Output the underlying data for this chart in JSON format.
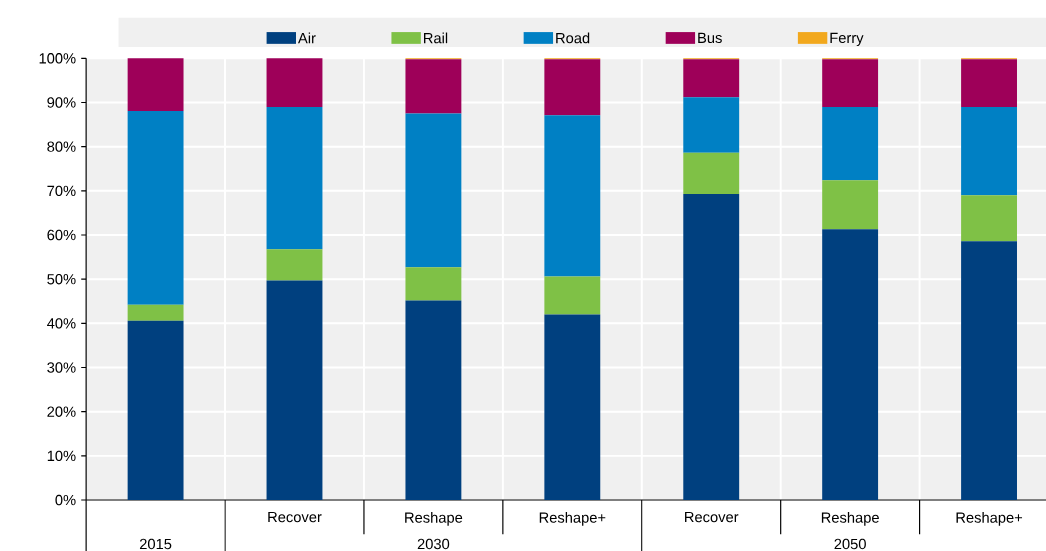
{
  "chart_data": {
    "type": "bar",
    "stacked": true,
    "categories": [
      null,
      "Recover",
      "Reshape",
      "Reshape+",
      "Recover",
      "Reshape",
      "Reshape+"
    ],
    "annotations": [
      "2015",
      "2030",
      "2050"
    ],
    "series": [
      {
        "name": "Air",
        "color": "#00407f",
        "values": [
          40.6,
          49.7,
          45.2,
          42.0,
          69.3,
          61.3,
          58.6
        ]
      },
      {
        "name": "Rail",
        "color": "#7fc146",
        "values": [
          3.6,
          7.1,
          7.5,
          8.6,
          9.3,
          11.1,
          10.4
        ]
      },
      {
        "name": "Road",
        "color": "#0080c4",
        "values": [
          43.9,
          32.2,
          34.8,
          36.5,
          12.6,
          16.6,
          20.0
        ]
      },
      {
        "name": "Bus",
        "color": "#9e0059",
        "values": [
          11.9,
          11.0,
          12.3,
          12.7,
          8.6,
          10.8,
          10.8
        ]
      },
      {
        "name": "Ferry",
        "color": "#f2a81d",
        "values": [
          0,
          0,
          0.2,
          0.2,
          0.2,
          0.2,
          0.2
        ]
      }
    ],
    "ylim": [
      0,
      100
    ],
    "yticks": [
      {
        "value": 0,
        "label": "0%"
      },
      {
        "value": 10,
        "label": "10%"
      },
      {
        "value": 20,
        "label": "20%"
      },
      {
        "value": 30,
        "label": "30%"
      },
      {
        "value": 40,
        "label": "40%"
      },
      {
        "value": 50,
        "label": "50%"
      },
      {
        "value": 60,
        "label": "60%"
      },
      {
        "value": 70,
        "label": "70%"
      },
      {
        "value": 80,
        "label": "80%"
      },
      {
        "value": 90,
        "label": "90%"
      },
      {
        "value": 100,
        "label": "100%"
      }
    ],
    "grid": true,
    "legend": "top"
  }
}
